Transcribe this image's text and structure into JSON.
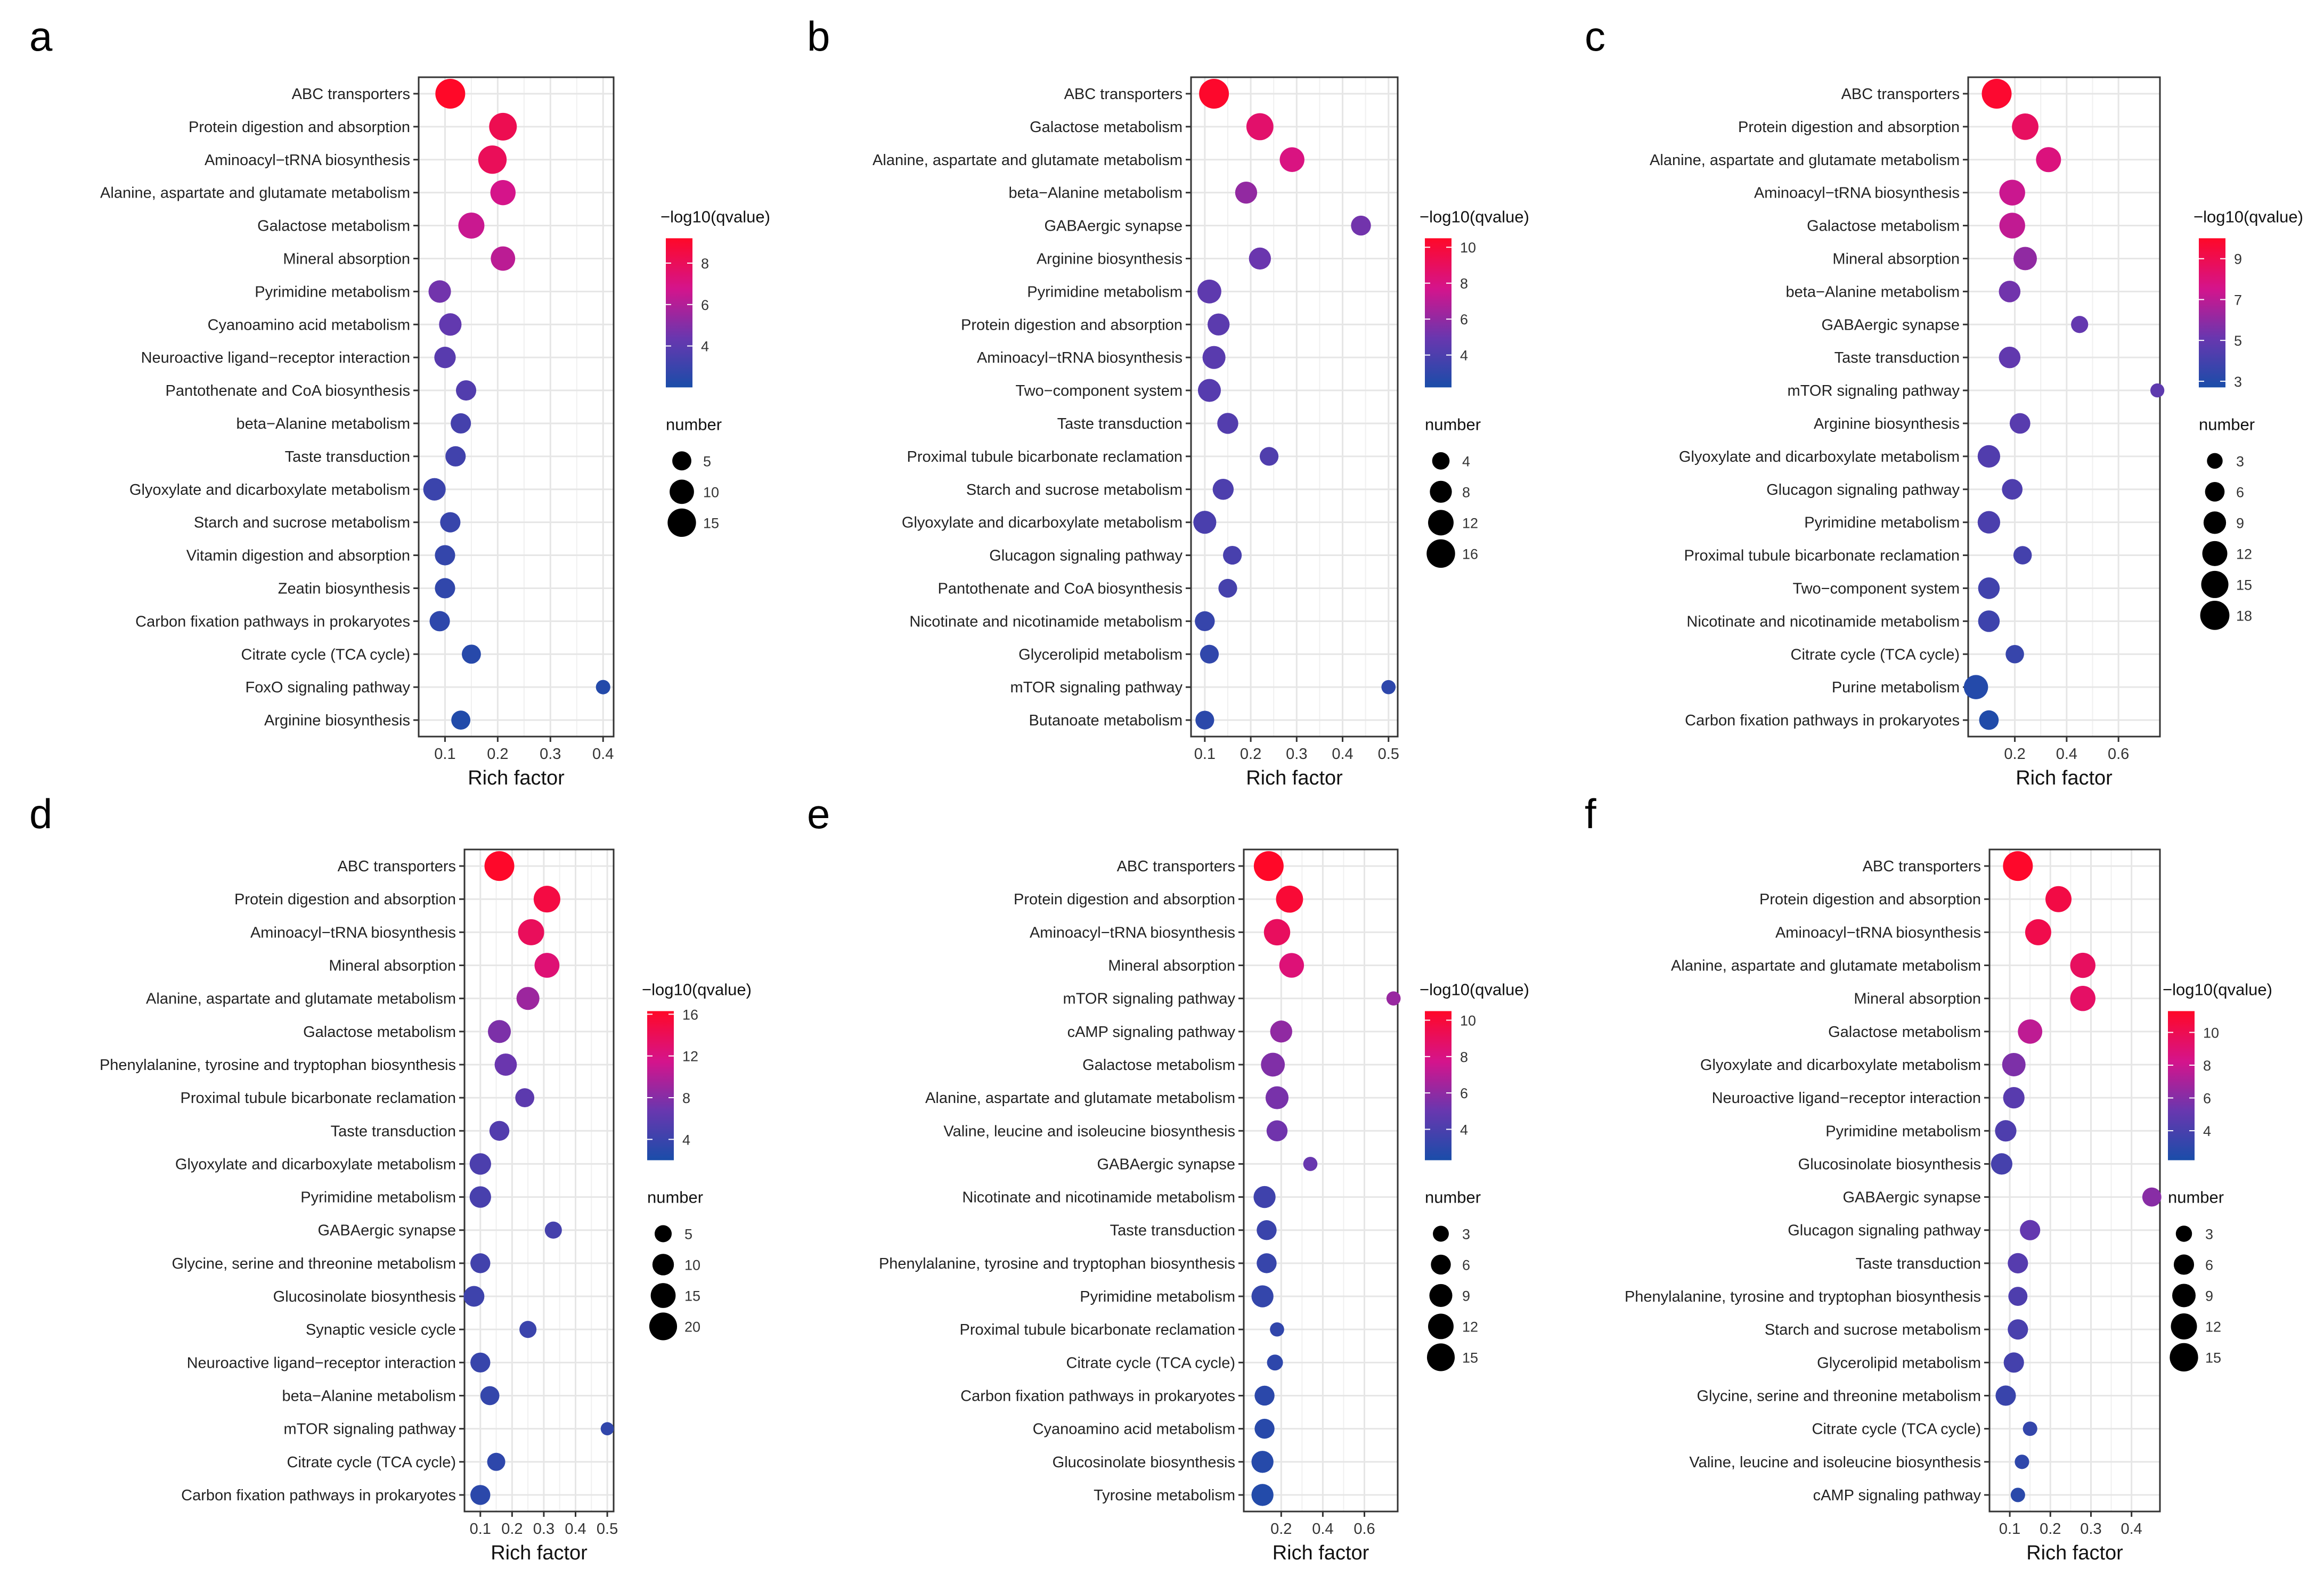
{
  "chart_data": [
    {
      "panel": "a",
      "type": "scatter",
      "xlabel": "Rich factor",
      "xlim": [
        0.05,
        0.42
      ],
      "xticks": [
        0.1,
        0.2,
        0.3,
        0.4
      ],
      "categories": [
        "ABC transporters",
        "Protein digestion and absorption",
        "Aminoacyl−tRNA biosynthesis",
        "Alanine, aspartate and glutamate metabolism",
        "Galactose metabolism",
        "Mineral absorption",
        "Pyrimidine metabolism",
        "Cyanoamino acid metabolism",
        "Neuroactive ligand−receptor interaction",
        "Pantothenate and CoA biosynthesis",
        "beta−Alanine metabolism",
        "Taste transduction",
        "Glyoxylate and dicarboxylate metabolism",
        "Starch and sucrose metabolism",
        "Vitamin digestion and absorption",
        "Zeatin biosynthesis",
        "Carbon fixation pathways in prokaryotes",
        "Citrate cycle (TCA cycle)",
        "FoxO signaling pathway",
        "Arginine biosynthesis"
      ],
      "x": [
        0.11,
        0.21,
        0.19,
        0.21,
        0.15,
        0.21,
        0.09,
        0.11,
        0.1,
        0.14,
        0.13,
        0.12,
        0.08,
        0.11,
        0.1,
        0.1,
        0.09,
        0.15,
        0.4,
        0.13
      ],
      "size": [
        17,
        14,
        15,
        11,
        12,
        10,
        8,
        8,
        7,
        6,
        6,
        6,
        8,
        6,
        6,
        6,
        6,
        5,
        2,
        5
      ],
      "color": [
        9.2,
        8.2,
        8.0,
        6.8,
        6.5,
        6.2,
        4.6,
        4.2,
        3.9,
        3.7,
        3.3,
        3.2,
        3.0,
        2.9,
        2.8,
        2.7,
        2.6,
        2.4,
        2.3,
        2.2
      ],
      "color_legend": {
        "title": "−log10(qvalue)",
        "min": 2.0,
        "max": 9.2,
        "ticks": [
          4,
          6,
          8
        ]
      },
      "size_legend": {
        "title": "number",
        "values": [
          5,
          10,
          15
        ]
      }
    },
    {
      "panel": "b",
      "type": "scatter",
      "xlabel": "Rich factor",
      "xlim": [
        0.07,
        0.52
      ],
      "xticks": [
        0.1,
        0.2,
        0.3,
        0.4,
        0.5
      ],
      "categories": [
        "ABC transporters",
        "Galactose metabolism",
        "Alanine, aspartate and glutamate metabolism",
        "beta−Alanine metabolism",
        "GABAergic synapse",
        "Arginine biosynthesis",
        "Pyrimidine metabolism",
        "Protein digestion and absorption",
        "Aminoacyl−tRNA biosynthesis",
        "Two−component system",
        "Taste transduction",
        "Proximal tubule bicarbonate reclamation",
        "Starch and sucrose metabolism",
        "Glyoxylate and dicarboxylate metabolism",
        "Glucagon signaling pathway",
        "Pantothenate and CoA biosynthesis",
        "Nicotinate and nicotinamide metabolism",
        "Glycerolipid metabolism",
        "mTOR signaling pathway",
        "Butanoate metabolism"
      ],
      "x": [
        0.12,
        0.22,
        0.29,
        0.19,
        0.44,
        0.22,
        0.11,
        0.13,
        0.12,
        0.11,
        0.15,
        0.24,
        0.14,
        0.1,
        0.16,
        0.15,
        0.1,
        0.11,
        0.5,
        0.1
      ],
      "size": [
        18,
        14,
        11,
        8,
        6,
        8,
        10,
        8,
        9,
        9,
        7,
        5,
        7,
        9,
        5,
        5,
        6,
        5,
        2,
        5
      ],
      "color": [
        10.4,
        8.6,
        8.0,
        6.0,
        5.2,
        5.0,
        4.6,
        4.5,
        4.4,
        4.3,
        4.2,
        4.1,
        4.0,
        3.9,
        3.8,
        3.7,
        3.2,
        3.0,
        2.9,
        2.8
      ],
      "color_legend": {
        "title": "−log10(qvalue)",
        "min": 2.2,
        "max": 10.5,
        "ticks": [
          4,
          6,
          8,
          10
        ]
      },
      "size_legend": {
        "title": "number",
        "values": [
          4,
          8,
          12,
          16
        ]
      }
    },
    {
      "panel": "c",
      "type": "scatter",
      "xlabel": "Rich factor",
      "xlim": [
        0.02,
        0.76
      ],
      "xticks": [
        0.2,
        0.4,
        0.6
      ],
      "categories": [
        "ABC transporters",
        "Protein digestion and absorption",
        "Alanine, aspartate and glutamate metabolism",
        "Aminoacyl−tRNA biosynthesis",
        "Galactose metabolism",
        "Mineral absorption",
        "beta−Alanine metabolism",
        "GABAergic synapse",
        "Taste transduction",
        "mTOR signaling pathway",
        "Arginine biosynthesis",
        "Glyoxylate and dicarboxylate metabolism",
        "Glucagon signaling pathway",
        "Pyrimidine metabolism",
        "Proximal tubule bicarbonate reclamation",
        "Two−component system",
        "Nicotinate and nicotinamide metabolism",
        "Citrate cycle (TCA cycle)",
        "Purine metabolism",
        "Carbon fixation pathways in prokaryotes"
      ],
      "x": [
        0.13,
        0.24,
        0.33,
        0.19,
        0.19,
        0.24,
        0.18,
        0.45,
        0.18,
        0.75,
        0.22,
        0.1,
        0.19,
        0.1,
        0.23,
        0.1,
        0.1,
        0.2,
        0.05,
        0.1
      ],
      "size": [
        19,
        14,
        12,
        13,
        13,
        10,
        8,
        4,
        8,
        2,
        7,
        9,
        7,
        9,
        5,
        8,
        8,
        5,
        11,
        6
      ],
      "color": [
        9.8,
        8.6,
        7.9,
        7.3,
        7.1,
        6.0,
        5.3,
        5.0,
        4.9,
        4.8,
        4.6,
        4.4,
        4.3,
        4.2,
        4.0,
        3.9,
        3.8,
        3.6,
        3.0,
        2.9
      ],
      "color_legend": {
        "title": "−log10(qvalue)",
        "min": 2.7,
        "max": 10.0,
        "ticks": [
          3,
          5,
          7,
          9
        ]
      },
      "size_legend": {
        "title": "number",
        "values": [
          3,
          6,
          9,
          12,
          15,
          18
        ]
      }
    },
    {
      "panel": "d",
      "type": "scatter",
      "xlabel": "Rich factor",
      "xlim": [
        0.05,
        0.52
      ],
      "xticks": [
        0.1,
        0.2,
        0.3,
        0.4,
        0.5
      ],
      "categories": [
        "ABC transporters",
        "Protein digestion and absorption",
        "Aminoacyl−tRNA biosynthesis",
        "Mineral absorption",
        "Alanine, aspartate and glutamate metabolism",
        "Galactose metabolism",
        "Phenylalanine, tyrosine and tryptophan biosynthesis",
        "Proximal tubule bicarbonate reclamation",
        "Taste transduction",
        "Glyoxylate and dicarboxylate metabolism",
        "Pyrimidine metabolism",
        "GABAergic synapse",
        "Glycine, serine and threonine metabolism",
        "Glucosinolate biosynthesis",
        "Synaptic vesicle cycle",
        "Neuroactive ligand−receptor interaction",
        "beta−Alanine metabolism",
        "mTOR signaling pathway",
        "Citrate cycle (TCA cycle)",
        "Carbon fixation pathways in prokaryotes"
      ],
      "x": [
        0.16,
        0.31,
        0.26,
        0.31,
        0.25,
        0.16,
        0.18,
        0.24,
        0.16,
        0.1,
        0.1,
        0.33,
        0.1,
        0.08,
        0.25,
        0.1,
        0.13,
        0.5,
        0.15,
        0.1
      ],
      "size": [
        24,
        18,
        17,
        15,
        12,
        12,
        11,
        7,
        8,
        10,
        10,
        5,
        8,
        9,
        5,
        8,
        7,
        2,
        6,
        8
      ],
      "color": [
        16.2,
        15.0,
        13.8,
        12.6,
        9.0,
        7.6,
        6.8,
        6.0,
        5.4,
        5.0,
        4.8,
        4.6,
        4.4,
        4.2,
        4.0,
        3.8,
        3.6,
        3.4,
        3.2,
        3.0
      ],
      "color_legend": {
        "title": "−log10(qvalue)",
        "min": 2.0,
        "max": 16.3,
        "ticks": [
          4,
          8,
          12,
          16
        ]
      },
      "size_legend": {
        "title": "number",
        "values": [
          5,
          10,
          15,
          20
        ]
      }
    },
    {
      "panel": "e",
      "type": "scatter",
      "xlabel": "Rich factor",
      "xlim": [
        0.02,
        0.76
      ],
      "xticks": [
        0.2,
        0.4,
        0.6
      ],
      "categories": [
        "ABC transporters",
        "Protein digestion and absorption",
        "Aminoacyl−tRNA biosynthesis",
        "Mineral absorption",
        "mTOR signaling pathway",
        "cAMP signaling pathway",
        "Galactose metabolism",
        "Alanine, aspartate and glutamate metabolism",
        "Valine, leucine and isoleucine biosynthesis",
        "GABAergic synapse",
        "Nicotinate and nicotinamide metabolism",
        "Taste transduction",
        "Phenylalanine, tyrosine and tryptophan biosynthesis",
        "Pyrimidine metabolism",
        "Proximal tubule bicarbonate reclamation",
        "Citrate cycle (TCA cycle)",
        "Carbon fixation pathways in prokaryotes",
        "Cyanoamino acid metabolism",
        "Glucosinolate biosynthesis",
        "Tyrosine metabolism"
      ],
      "x": [
        0.14,
        0.24,
        0.18,
        0.25,
        0.74,
        0.2,
        0.16,
        0.18,
        0.18,
        0.34,
        0.12,
        0.13,
        0.13,
        0.11,
        0.18,
        0.17,
        0.12,
        0.12,
        0.11,
        0.11
      ],
      "size": [
        18,
        14,
        13,
        11,
        2,
        8,
        10,
        9,
        7,
        2,
        8,
        6,
        6,
        8,
        2,
        3,
        6,
        6,
        8,
        8
      ],
      "color": [
        10.5,
        10.1,
        9.0,
        8.3,
        6.2,
        6.0,
        5.6,
        5.4,
        5.2,
        5.0,
        3.6,
        3.4,
        3.3,
        3.2,
        3.1,
        3.0,
        2.9,
        2.8,
        2.7,
        2.6
      ],
      "color_legend": {
        "title": "−log10(qvalue)",
        "min": 2.3,
        "max": 10.5,
        "ticks": [
          4,
          6,
          8,
          10
        ]
      },
      "size_legend": {
        "title": "number",
        "values": [
          3,
          6,
          9,
          12,
          15
        ]
      }
    },
    {
      "panel": "f",
      "type": "scatter",
      "xlabel": "Rich factor",
      "xlim": [
        0.05,
        0.47
      ],
      "xticks": [
        0.1,
        0.2,
        0.3,
        0.4
      ],
      "categories": [
        "ABC transporters",
        "Protein digestion and absorption",
        "Aminoacyl−tRNA biosynthesis",
        "Alanine, aspartate and glutamate metabolism",
        "Mineral absorption",
        "Galactose metabolism",
        "Glyoxylate and dicarboxylate metabolism",
        "Neuroactive ligand−receptor interaction",
        "Pyrimidine metabolism",
        "Glucosinolate biosynthesis",
        "GABAergic synapse",
        "Glucagon signaling pathway",
        "Taste transduction",
        "Phenylalanine, tyrosine and tryptophan biosynthesis",
        "Starch and sucrose metabolism",
        "Glycerolipid metabolism",
        "Glycine, serine and threonine metabolism",
        "Citrate cycle (TCA cycle)",
        "Valine, leucine and isoleucine biosynthesis",
        "cAMP signaling pathway"
      ],
      "x": [
        0.12,
        0.22,
        0.17,
        0.28,
        0.28,
        0.15,
        0.11,
        0.11,
        0.09,
        0.08,
        0.45,
        0.15,
        0.12,
        0.12,
        0.12,
        0.11,
        0.09,
        0.15,
        0.13,
        0.12
      ],
      "size": [
        17,
        12,
        12,
        11,
        11,
        10,
        9,
        7,
        7,
        7,
        5,
        6,
        6,
        5,
        6,
        6,
        6,
        2,
        2,
        2
      ],
      "color": [
        11.2,
        10.4,
        10.2,
        9.6,
        9.4,
        7.6,
        5.8,
        4.6,
        4.2,
        3.9,
        6.1,
        5.0,
        4.5,
        4.2,
        4.0,
        3.8,
        3.4,
        3.2,
        3.0,
        2.8
      ],
      "color_legend": {
        "title": "−log10(qvalue)",
        "min": 2.2,
        "max": 11.3,
        "ticks": [
          4,
          6,
          8,
          10
        ]
      },
      "size_legend": {
        "title": "number",
        "values": [
          3,
          6,
          9,
          12,
          15
        ]
      }
    }
  ]
}
